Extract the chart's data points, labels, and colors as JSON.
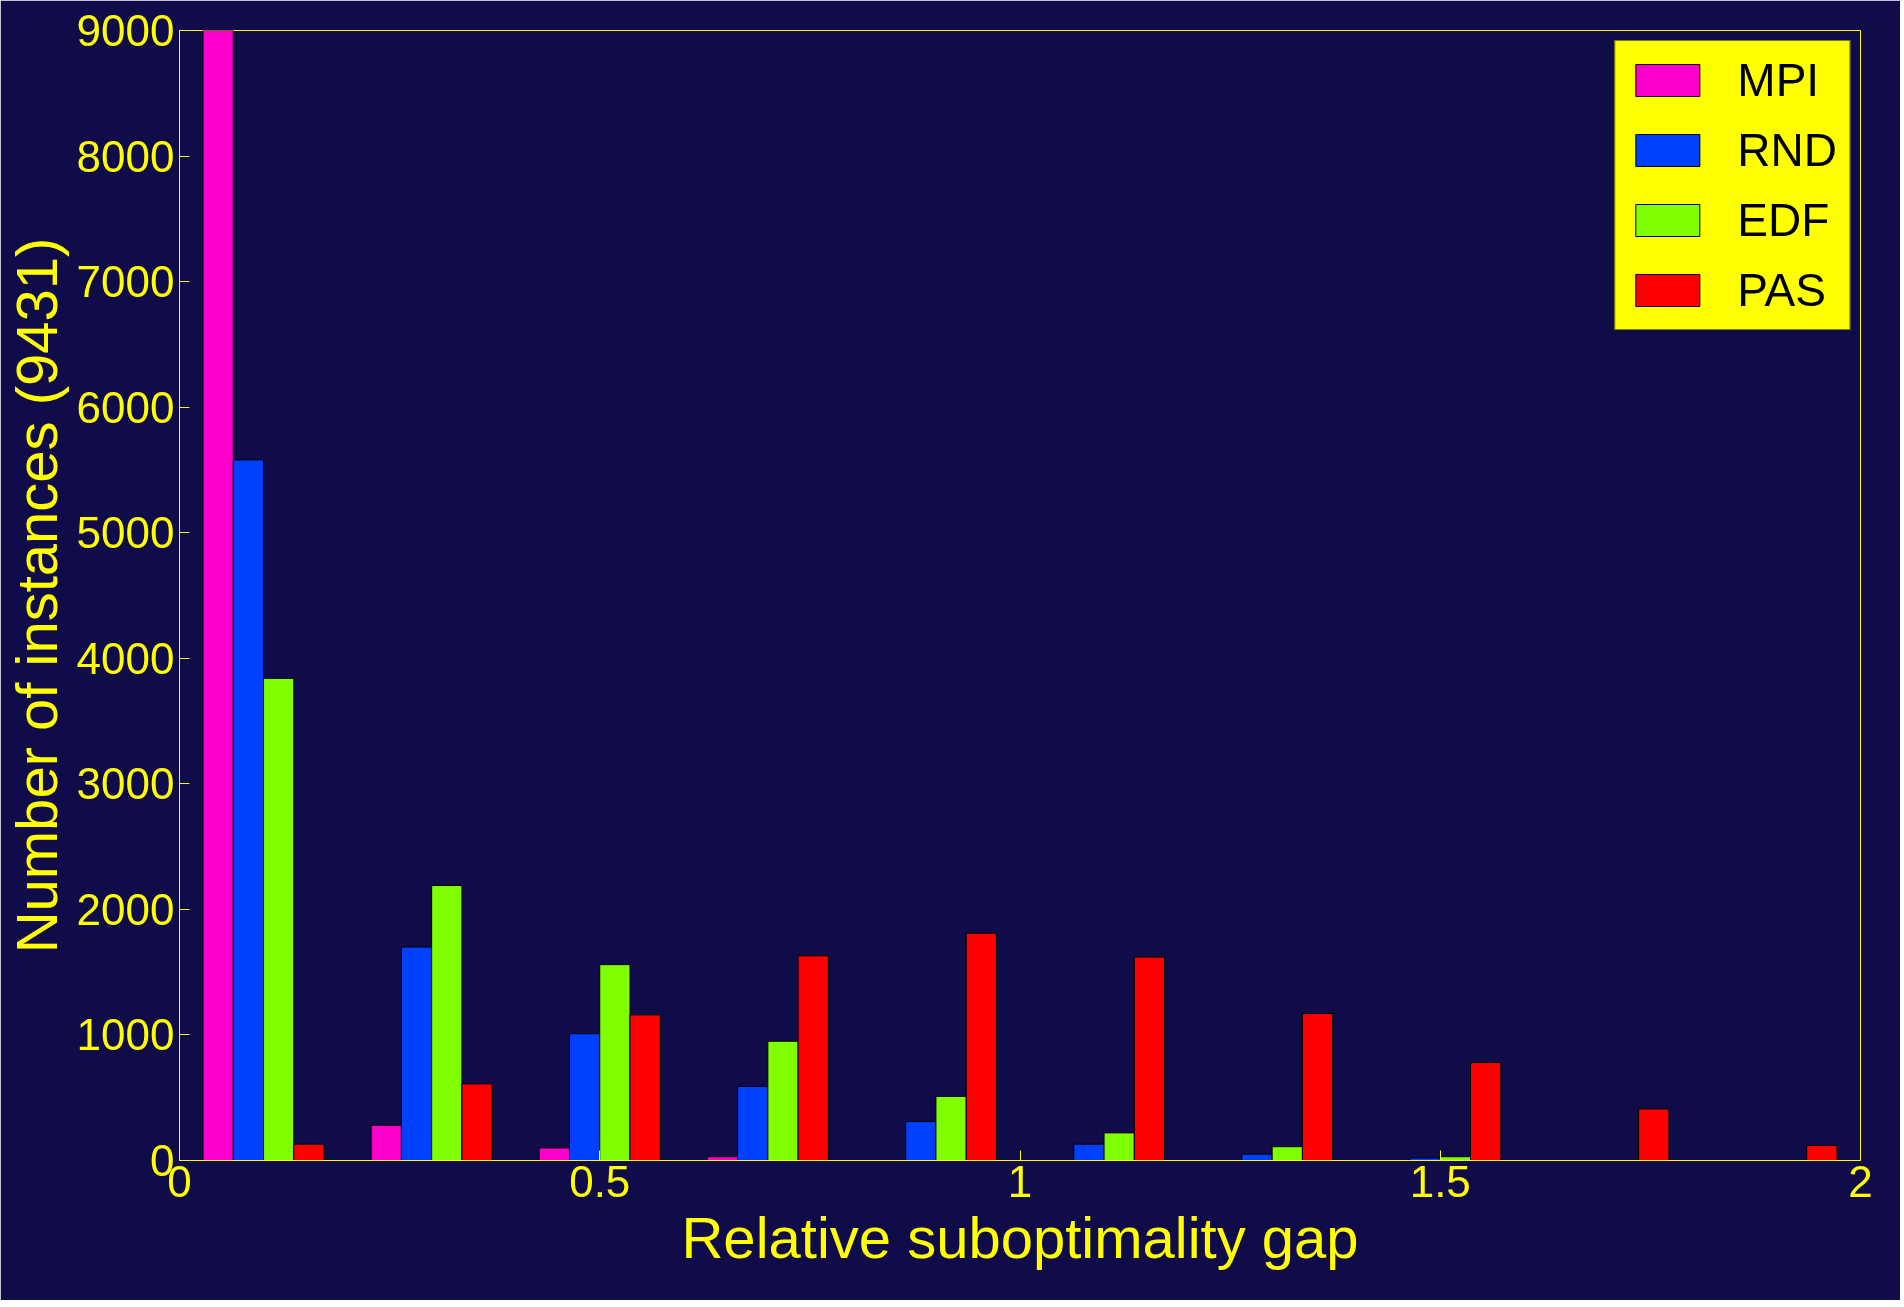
{
  "chart_data": {
    "type": "bar",
    "xlabel": "Relative suboptimality gap",
    "ylabel": "Number of instances (9431)",
    "x": [
      0.1,
      0.3,
      0.5,
      0.7,
      0.9,
      1.1,
      1.3,
      1.5,
      1.7,
      1.9
    ],
    "series": [
      {
        "name": "MPI",
        "color": "#ff00cc",
        "values": [
          9000,
          280,
          100,
          30,
          0,
          0,
          0,
          0,
          0,
          0
        ]
      },
      {
        "name": "RND",
        "color": "#0040ff",
        "values": [
          5580,
          1700,
          1010,
          590,
          310,
          130,
          50,
          20,
          0,
          0
        ]
      },
      {
        "name": "EDF",
        "color": "#80ff00",
        "values": [
          3840,
          2190,
          1560,
          950,
          510,
          220,
          110,
          30,
          0,
          0
        ]
      },
      {
        "name": "PAS",
        "color": "#ff0000",
        "values": [
          130,
          610,
          1160,
          1630,
          1810,
          1620,
          1170,
          780,
          410,
          120
        ]
      }
    ],
    "xlim": [
      0,
      2
    ],
    "xticks": [
      0,
      0.5,
      1,
      1.5,
      2
    ],
    "ylim": [
      0,
      9000
    ],
    "yticks": [
      0,
      1000,
      2000,
      3000,
      4000,
      5000,
      6000,
      7000,
      8000,
      9000
    ],
    "grid": false,
    "legend": "top right"
  }
}
